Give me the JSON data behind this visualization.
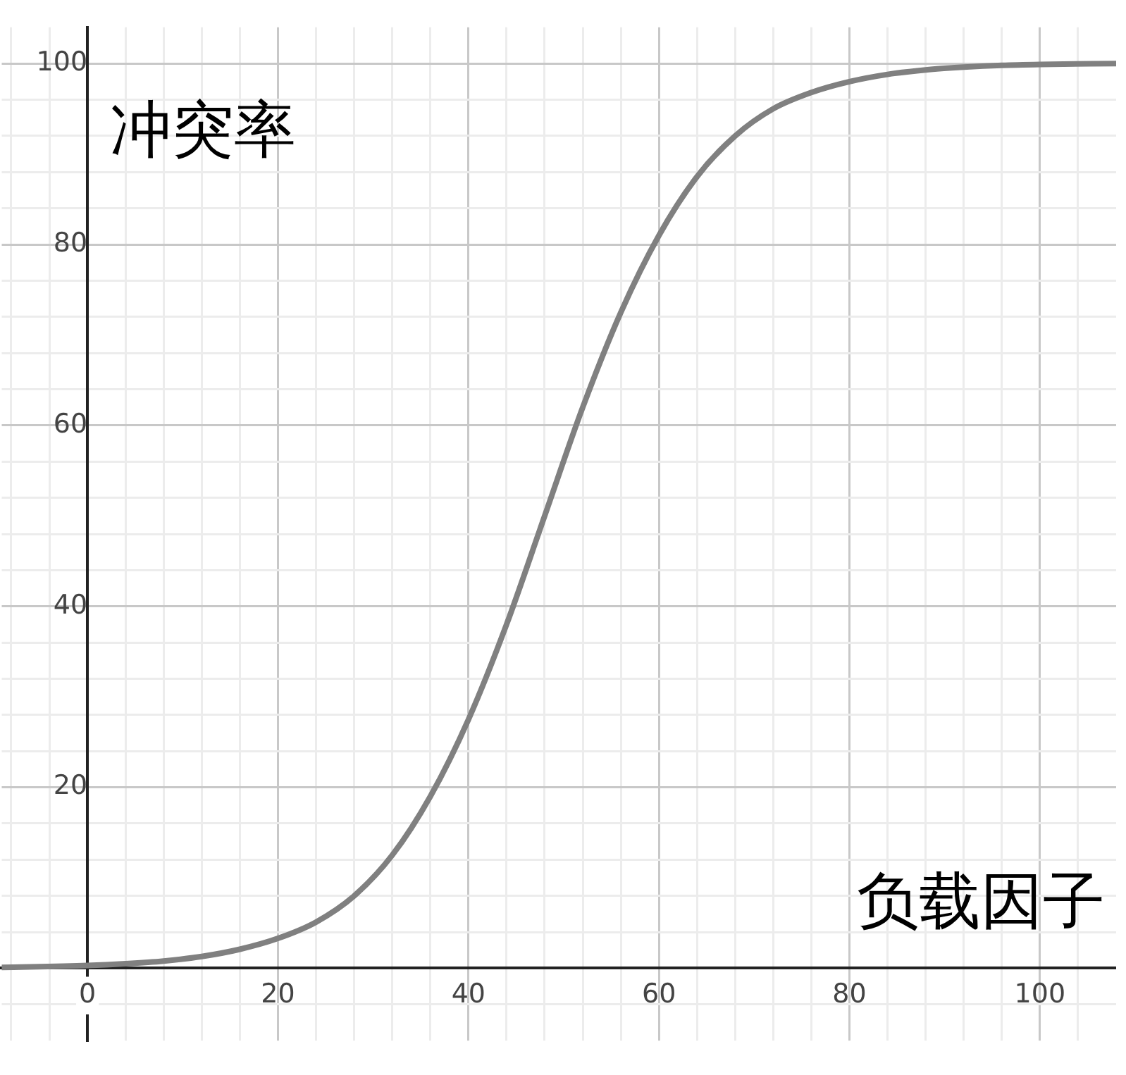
{
  "chart_data": {
    "type": "line",
    "xlabel": "负载因子",
    "ylabel": "冲突率",
    "x": [
      -9,
      0,
      4,
      8,
      12,
      16,
      20,
      24,
      28,
      32,
      36,
      40,
      44,
      48,
      52,
      56,
      60,
      64,
      68,
      72,
      76,
      80,
      84,
      88,
      92,
      96,
      100,
      108
    ],
    "series": [
      {
        "color": "#808080",
        "values": [
          0.1,
          0.3,
          0.5,
          0.8,
          1.3,
          2.1,
          3.3,
          5.1,
          8,
          12.5,
          19,
          27.5,
          38,
          50,
          62,
          72.5,
          81,
          87.5,
          92,
          95,
          96.8,
          98,
          98.8,
          99.3,
          99.6,
          99.8,
          99.9,
          100
        ]
      }
    ],
    "xlim": [
      -9,
      108
    ],
    "ylim": [
      -8,
      104
    ],
    "xticks": [
      {
        "value": -8,
        "label": null
      },
      {
        "value": -4,
        "label": null
      },
      {
        "value": 0,
        "label": "0"
      },
      {
        "value": 4,
        "label": null
      },
      {
        "value": 8,
        "label": null
      },
      {
        "value": 12,
        "label": null
      },
      {
        "value": 16,
        "label": null
      },
      20,
      {
        "value": 24,
        "label": null
      },
      {
        "value": 28,
        "label": null
      },
      {
        "value": 32,
        "label": null
      },
      {
        "value": 36,
        "label": null
      },
      40,
      {
        "value": 44,
        "label": null
      },
      {
        "value": 48,
        "label": null
      },
      {
        "value": 52,
        "label": null
      },
      {
        "value": 56,
        "label": null
      },
      60,
      {
        "value": 64,
        "label": null
      },
      {
        "value": 68,
        "label": null
      },
      {
        "value": 72,
        "label": null
      },
      {
        "value": 76,
        "label": null
      },
      80,
      {
        "value": 84,
        "label": null
      },
      {
        "value": 88,
        "label": null
      },
      {
        "value": 92,
        "label": null
      },
      {
        "value": 96,
        "label": null
      },
      100,
      {
        "value": 104,
        "label": null
      }
    ],
    "yticks": [
      {
        "value": -4,
        "label": null
      },
      {
        "value": 0,
        "label": null
      },
      {
        "value": 4,
        "label": null
      },
      {
        "value": 8,
        "label": null
      },
      {
        "value": 12,
        "label": null
      },
      {
        "value": 16,
        "label": null
      },
      20,
      {
        "value": 24,
        "label": null
      },
      {
        "value": 28,
        "label": null
      },
      {
        "value": 32,
        "label": null
      },
      {
        "value": 36,
        "label": null
      },
      40,
      {
        "value": 44,
        "label": null
      },
      {
        "value": 48,
        "label": null
      },
      {
        "value": 52,
        "label": null
      },
      {
        "value": 56,
        "label": null
      },
      60,
      {
        "value": 64,
        "label": null
      },
      {
        "value": 68,
        "label": null
      },
      {
        "value": 72,
        "label": null
      },
      {
        "value": 76,
        "label": null
      },
      80,
      {
        "value": 84,
        "label": null
      },
      {
        "value": 88,
        "label": null
      },
      {
        "value": 92,
        "label": null
      },
      {
        "value": 96,
        "label": null
      },
      100
    ],
    "grid": true,
    "legend": false,
    "marker": "none",
    "line_style": "solid"
  }
}
